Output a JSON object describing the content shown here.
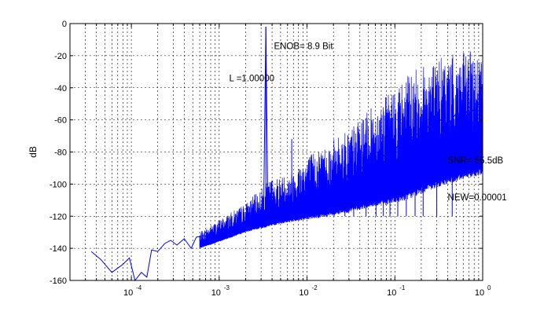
{
  "chart_data": {
    "type": "line",
    "title": "",
    "xlabel": "",
    "ylabel": "dB",
    "xscale": "log",
    "xlim": [
      2e-05,
      1
    ],
    "ylim": [
      -160,
      0
    ],
    "grid": "dashed major and minor (x)",
    "x_ticks": [
      {
        "value": 0.0001,
        "mantissa": "10",
        "exponent": "-4"
      },
      {
        "value": 0.001,
        "mantissa": "10",
        "exponent": "-3"
      },
      {
        "value": 0.01,
        "mantissa": "10",
        "exponent": "-2"
      },
      {
        "value": 0.1,
        "mantissa": "10",
        "exponent": "-1"
      },
      {
        "value": 1,
        "mantissa": "10",
        "exponent": "0"
      }
    ],
    "y_ticks": [
      0,
      -20,
      -40,
      -60,
      -80,
      -100,
      -120,
      -140,
      -160
    ],
    "series": [
      {
        "color": "#0000ff",
        "points": [
          [
            3.5e-05,
            -142
          ],
          [
            4.5e-05,
            -147
          ],
          [
            6e-05,
            -155
          ],
          [
            8e-05,
            -150
          ],
          [
            9.5e-05,
            -146
          ],
          [
            0.00011,
            -160
          ],
          [
            0.00013,
            -155
          ],
          [
            0.00015,
            -158
          ],
          [
            0.00017,
            -141
          ],
          [
            0.0002,
            -142
          ],
          [
            0.00024,
            -137
          ],
          [
            0.00028,
            -135
          ],
          [
            0.00033,
            -138
          ],
          [
            0.0004,
            -134
          ],
          [
            0.00048,
            -140
          ],
          [
            0.00055,
            -133
          ],
          [
            0.0007,
            -132
          ],
          [
            0.00085,
            -136
          ],
          [
            0.001,
            -130
          ],
          [
            0.0012,
            -127
          ],
          [
            0.0014,
            -131
          ],
          [
            0.0016,
            -125
          ],
          [
            0.0019,
            -128
          ],
          [
            0.0022,
            -122
          ],
          [
            0.0026,
            -124
          ],
          [
            0.003,
            -119
          ],
          [
            0.0032,
            -122
          ],
          [
            0.0034,
            -2
          ],
          [
            0.0036,
            -126
          ],
          [
            0.004,
            -117
          ],
          [
            0.0045,
            -121
          ],
          [
            0.005,
            -114
          ],
          [
            0.0056,
            -118
          ],
          [
            0.0063,
            -112
          ],
          [
            0.007,
            -116
          ],
          [
            0.008,
            -109
          ],
          [
            0.009,
            -113
          ],
          [
            0.01,
            -106
          ],
          [
            0.011,
            -110
          ],
          [
            0.013,
            -103
          ],
          [
            0.015,
            -107
          ],
          [
            0.017,
            -100
          ],
          [
            0.02,
            -103
          ],
          [
            0.023,
            -96
          ],
          [
            0.027,
            -100
          ],
          [
            0.03,
            -92
          ],
          [
            0.035,
            -96
          ],
          [
            0.04,
            -88
          ],
          [
            0.045,
            -92
          ],
          [
            0.05,
            -84
          ],
          [
            0.06,
            -88
          ],
          [
            0.07,
            -80
          ],
          [
            0.08,
            -84
          ],
          [
            0.09,
            -76
          ],
          [
            0.1,
            -79
          ],
          [
            0.12,
            -72
          ],
          [
            0.14,
            -75
          ],
          [
            0.17,
            -68
          ],
          [
            0.2,
            -71
          ],
          [
            0.24,
            -64
          ],
          [
            0.28,
            -67
          ],
          [
            0.33,
            -60
          ],
          [
            0.4,
            -63
          ],
          [
            0.5,
            -56
          ],
          [
            0.6,
            -59
          ],
          [
            0.7,
            -52
          ],
          [
            0.8,
            -55
          ],
          [
            0.9,
            -50
          ],
          [
            1.0,
            -52
          ]
        ],
        "envelope_top": [
          [
            0.0006,
            -130
          ],
          [
            0.001,
            -122
          ],
          [
            0.002,
            -112
          ],
          [
            0.004,
            -96
          ],
          [
            0.006,
            -94
          ],
          [
            0.01,
            -82
          ],
          [
            0.02,
            -72
          ],
          [
            0.04,
            -60
          ],
          [
            0.06,
            -50
          ],
          [
            0.1,
            -40
          ],
          [
            0.15,
            -30
          ],
          [
            0.25,
            -24
          ],
          [
            0.4,
            -20
          ],
          [
            0.6,
            -18
          ],
          [
            1.0,
            -16
          ]
        ],
        "envelope_bottom": [
          [
            0.0006,
            -140
          ],
          [
            0.001,
            -136
          ],
          [
            0.002,
            -130
          ],
          [
            0.004,
            -126
          ],
          [
            0.006,
            -124
          ],
          [
            0.01,
            -122
          ],
          [
            0.02,
            -120
          ],
          [
            0.04,
            -116
          ],
          [
            0.06,
            -114
          ],
          [
            0.1,
            -112
          ],
          [
            0.15,
            -109
          ],
          [
            0.25,
            -104
          ],
          [
            0.4,
            -100
          ],
          [
            0.6,
            -97
          ],
          [
            1.0,
            -94
          ]
        ],
        "spurs": [
          {
            "x": 0.0034,
            "y": -2
          },
          {
            "x": 0.0067,
            "y": -72
          },
          {
            "x": 0.0101,
            "y": -88
          },
          {
            "x": 0.0135,
            "y": -92
          },
          {
            "x": 0.0169,
            "y": -96
          },
          {
            "x": 0.0203,
            "y": -92
          },
          {
            "x": 0.027,
            "y": -95
          },
          {
            "x": 0.034,
            "y": -88
          },
          {
            "x": 0.047,
            "y": -90
          },
          {
            "x": 0.061,
            "y": -70
          },
          {
            "x": 0.074,
            "y": -82
          },
          {
            "x": 0.088,
            "y": -74
          },
          {
            "x": 0.108,
            "y": -68
          },
          {
            "x": 0.135,
            "y": -60
          },
          {
            "x": 0.17,
            "y": -54
          },
          {
            "x": 0.21,
            "y": -50
          },
          {
            "x": 0.3,
            "y": -38
          },
          {
            "x": 0.45,
            "y": -32
          }
        ]
      }
    ],
    "annotations": [
      {
        "text": "ENOB= 8.9 Bit",
        "x": 0.0042,
        "y": -16
      },
      {
        "text": "L =1.00000",
        "x": 0.0013,
        "y": -36
      },
      {
        "text": "SNR= 55.5dB",
        "x": 0.4,
        "y": -87
      },
      {
        "text": "NEW=0.00001",
        "x": 0.4,
        "y": -110
      }
    ]
  }
}
